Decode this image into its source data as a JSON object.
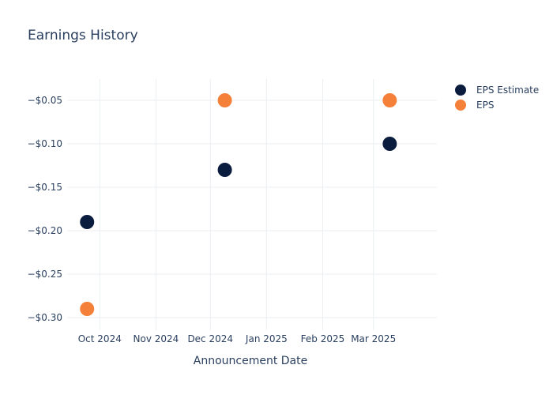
{
  "chart_data": {
    "type": "scatter",
    "title": "Earnings History",
    "xlabel": "Announcement Date",
    "ylabel": "",
    "x_ticks": [
      {
        "date": "2024-10-01",
        "label": "Oct 2024"
      },
      {
        "date": "2024-11-01",
        "label": "Nov 2024"
      },
      {
        "date": "2024-12-01",
        "label": "Dec 2024"
      },
      {
        "date": "2025-01-01",
        "label": "Jan 2025"
      },
      {
        "date": "2025-02-01",
        "label": "Feb 2025"
      },
      {
        "date": "2025-03-01",
        "label": "Mar 2025"
      }
    ],
    "y_ticks": [
      {
        "value": -0.05,
        "label": "−$0.05"
      },
      {
        "value": -0.1,
        "label": "−$0.10"
      },
      {
        "value": -0.15,
        "label": "−$0.15"
      },
      {
        "value": -0.2,
        "label": "−$0.20"
      },
      {
        "value": -0.25,
        "label": "−$0.25"
      },
      {
        "value": -0.3,
        "label": "−$0.30"
      }
    ],
    "xlim": [
      "2024-09-13",
      "2025-04-05"
    ],
    "ylim": [
      -0.3145,
      -0.0255
    ],
    "grid": true,
    "legend_position": "top-right",
    "series": [
      {
        "name": "EPS Estimate",
        "color": "#0b1d3f",
        "points": [
          {
            "x": "2024-09-24",
            "y": -0.19
          },
          {
            "x": "2024-12-09",
            "y": -0.13
          },
          {
            "x": "2025-03-10",
            "y": -0.1
          }
        ]
      },
      {
        "name": "EPS",
        "color": "#f5803a",
        "points": [
          {
            "x": "2024-09-24",
            "y": -0.29
          },
          {
            "x": "2024-12-09",
            "y": -0.05
          },
          {
            "x": "2025-03-10",
            "y": -0.05
          }
        ]
      }
    ]
  }
}
